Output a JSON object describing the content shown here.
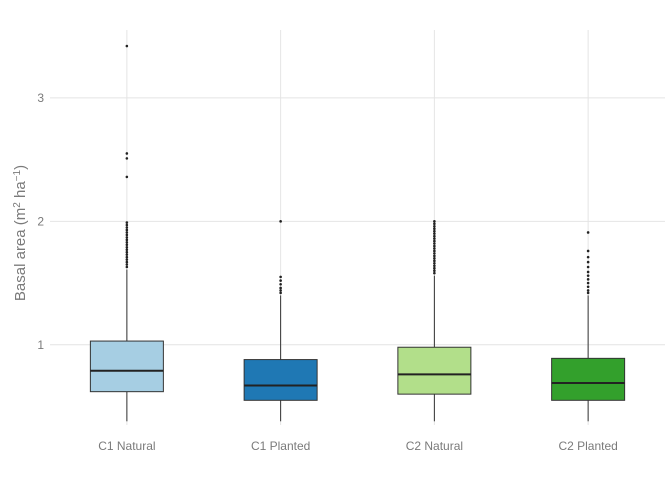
{
  "chart_data": {
    "type": "box",
    "title": "",
    "xlabel": "",
    "ylabel_parts": [
      "Basal area (m",
      "2",
      " ha",
      "−1",
      ")"
    ],
    "ylim": [
      0.35,
      3.55
    ],
    "yticks": [
      1,
      2,
      3
    ],
    "ytick_labels": [
      "1",
      "2",
      "3"
    ],
    "grid": true,
    "legend": "none",
    "categories": [
      "C1 Natural",
      "C1 Planted",
      "C2 Natural",
      "C2 Planted"
    ],
    "boxes": [
      {
        "category": "C1 Natural",
        "color": "#a6cee3",
        "whisker_low": 0.38,
        "q1": 0.62,
        "median": 0.79,
        "q3": 1.03,
        "whisker_high": 1.61,
        "outliers": [
          1.63,
          1.65,
          1.67,
          1.69,
          1.71,
          1.73,
          1.75,
          1.77,
          1.79,
          1.81,
          1.83,
          1.85,
          1.87,
          1.89,
          1.91,
          1.93,
          1.95,
          1.97,
          1.99,
          2.36,
          2.51,
          2.55,
          3.42
        ]
      },
      {
        "category": "C1 Planted",
        "color": "#1f78b4",
        "whisker_low": 0.38,
        "q1": 0.55,
        "median": 0.67,
        "q3": 0.88,
        "whisker_high": 1.4,
        "outliers": [
          1.42,
          1.44,
          1.46,
          1.49,
          1.52,
          1.55,
          2.0
        ]
      },
      {
        "category": "C2 Natural",
        "color": "#b2df8a",
        "whisker_low": 0.38,
        "q1": 0.6,
        "median": 0.76,
        "q3": 0.98,
        "whisker_high": 1.56,
        "outliers": [
          1.58,
          1.6,
          1.62,
          1.64,
          1.66,
          1.68,
          1.7,
          1.72,
          1.74,
          1.76,
          1.78,
          1.8,
          1.82,
          1.84,
          1.86,
          1.88,
          1.9,
          1.92,
          1.94,
          1.96,
          1.98,
          2.0
        ]
      },
      {
        "category": "C2 Planted",
        "color": "#33a02c",
        "whisker_low": 0.38,
        "q1": 0.55,
        "median": 0.69,
        "q3": 0.89,
        "whisker_high": 1.4,
        "outliers": [
          1.42,
          1.44,
          1.47,
          1.5,
          1.53,
          1.56,
          1.59,
          1.63,
          1.67,
          1.71,
          1.76,
          1.91
        ]
      }
    ]
  }
}
